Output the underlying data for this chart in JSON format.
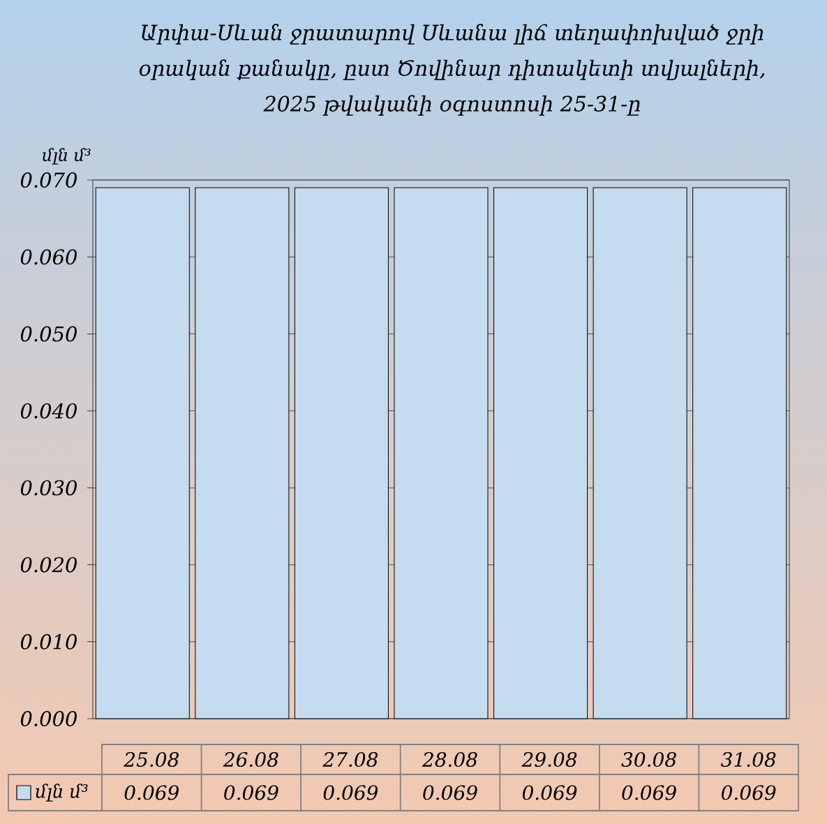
{
  "chart_data": {
    "type": "bar",
    "title": "Արփա-Սևան ջրատարով Սևանա լիճ տեղափոխված ջրի օրական քանակը, ըստ Ծովինար դիտակետի տվյալների, 2025 թվականի օգոստոսի 25-31-ը",
    "ylabel": "մլն մ³",
    "categories": [
      "25.08",
      "26.08",
      "27.08",
      "28.08",
      "29.08",
      "30.08",
      "31.08"
    ],
    "series": [
      {
        "name": "մլն մ³",
        "color": "#c5dbef",
        "values": [
          0.069,
          0.069,
          0.069,
          0.069,
          0.069,
          0.069,
          0.069
        ]
      }
    ],
    "ylim": [
      0,
      0.07
    ],
    "yticks": [
      {
        "value": 0,
        "label": "0.000"
      },
      {
        "value": 0.01,
        "label": "0.010"
      },
      {
        "value": 0.02,
        "label": "0.020"
      },
      {
        "value": 0.03,
        "label": "0.030"
      },
      {
        "value": 0.04,
        "label": "0.040"
      },
      {
        "value": 0.05,
        "label": "0.050"
      },
      {
        "value": 0.06,
        "label": "0.060"
      },
      {
        "value": 0.07,
        "label": "0.070"
      }
    ],
    "grid": "y",
    "legend": "bottom left",
    "data_labels": true
  }
}
